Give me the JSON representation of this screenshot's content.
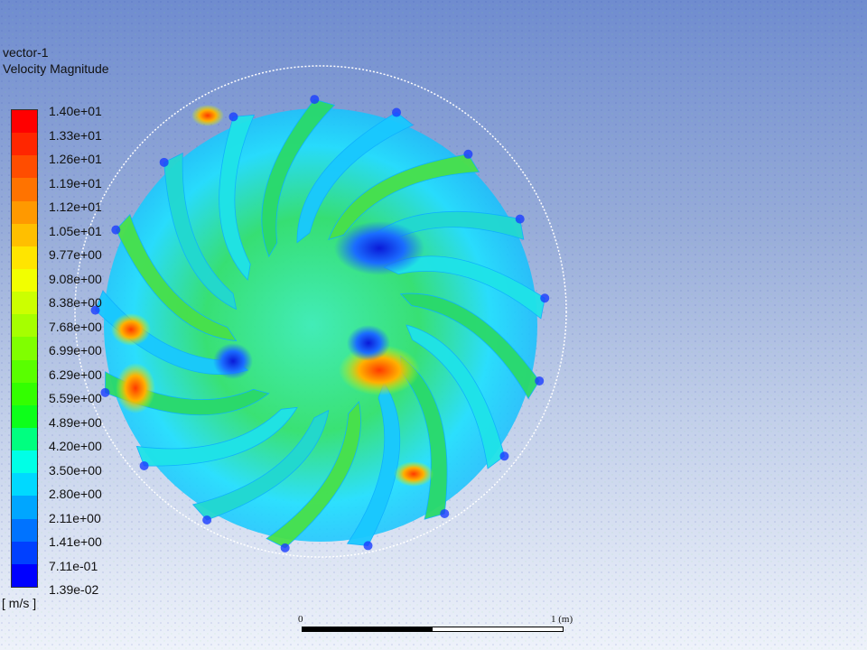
{
  "legend": {
    "name": "vector-1",
    "variable": "Velocity Magnitude",
    "units": "[ m/s ]",
    "ticks": [
      "1.40e+01",
      "1.33e+01",
      "1.26e+01",
      "1.19e+01",
      "1.12e+01",
      "1.05e+01",
      "9.77e+00",
      "9.08e+00",
      "8.38e+00",
      "7.68e+00",
      "6.99e+00",
      "6.29e+00",
      "5.59e+00",
      "4.89e+00",
      "4.20e+00",
      "3.50e+00",
      "2.80e+00",
      "2.11e+00",
      "1.41e+00",
      "7.11e-01",
      "1.39e-02"
    ],
    "colors": [
      "#ff0000",
      "#ff2600",
      "#ff4d00",
      "#ff7300",
      "#ff9900",
      "#ffbf00",
      "#ffe500",
      "#f2ff00",
      "#ccff00",
      "#a6ff00",
      "#80ff00",
      "#59ff00",
      "#33ff00",
      "#0dff1a",
      "#00ff80",
      "#00ffe6",
      "#00d9ff",
      "#00a6ff",
      "#0073ff",
      "#0040ff",
      "#0000ff"
    ]
  },
  "scale": {
    "start_label": "0",
    "end_label": "1 (m)"
  },
  "view": {
    "blade_count": 17,
    "background_top": "#6f8ccf",
    "background_bottom": "#eef2fa"
  }
}
